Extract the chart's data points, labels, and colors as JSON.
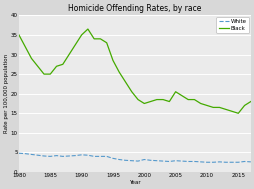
{
  "title": "Homicide Offending Rates, by race",
  "xlabel": "Year",
  "ylabel": "Rate per 100,000 population",
  "ylim": [
    0,
    40
  ],
  "yticks": [
    0,
    5,
    10,
    15,
    20,
    25,
    30,
    35,
    40
  ],
  "xlim": [
    1980,
    2017
  ],
  "xticks": [
    1980,
    1985,
    1990,
    1995,
    2000,
    2005,
    2010,
    2015
  ],
  "white_color": "#5599cc",
  "black_color": "#44aa00",
  "fig_bg_color": "#d8d8d8",
  "plot_bg_color": "#ebebeb",
  "grid_color": "#ffffff",
  "years_white": [
    1980,
    1981,
    1982,
    1983,
    1984,
    1985,
    1986,
    1987,
    1988,
    1989,
    1990,
    1991,
    1992,
    1993,
    1994,
    1995,
    1996,
    1997,
    1998,
    1999,
    2000,
    2001,
    2002,
    2003,
    2004,
    2005,
    2006,
    2007,
    2008,
    2009,
    2010,
    2011,
    2012,
    2013,
    2014,
    2015,
    2016,
    2017
  ],
  "values_white": [
    4.8,
    4.7,
    4.5,
    4.3,
    4.1,
    4.0,
    4.2,
    4.0,
    4.1,
    4.2,
    4.4,
    4.3,
    4.0,
    4.0,
    4.0,
    3.5,
    3.2,
    3.0,
    2.9,
    2.8,
    3.2,
    3.0,
    2.9,
    2.8,
    2.7,
    2.9,
    2.8,
    2.7,
    2.7,
    2.6,
    2.5,
    2.5,
    2.6,
    2.5,
    2.5,
    2.5,
    2.7,
    2.6
  ],
  "years_black": [
    1980,
    1981,
    1982,
    1983,
    1984,
    1985,
    1986,
    1987,
    1988,
    1989,
    1990,
    1991,
    1992,
    1993,
    1994,
    1995,
    1996,
    1997,
    1998,
    1999,
    2000,
    2001,
    2002,
    2003,
    2004,
    2005,
    2006,
    2007,
    2008,
    2009,
    2010,
    2011,
    2012,
    2013,
    2014,
    2015,
    2016,
    2017
  ],
  "values_black": [
    35.0,
    32.0,
    29.0,
    27.0,
    25.0,
    25.0,
    27.0,
    27.5,
    30.0,
    32.5,
    35.0,
    36.5,
    34.0,
    34.0,
    33.0,
    28.5,
    25.5,
    23.0,
    20.5,
    18.5,
    17.5,
    18.0,
    18.5,
    18.5,
    18.0,
    20.5,
    19.5,
    18.5,
    18.5,
    17.5,
    17.0,
    16.5,
    16.5,
    16.0,
    15.5,
    15.0,
    17.0,
    18.0
  ],
  "title_fontsize": 5.5,
  "axis_label_fontsize": 4.0,
  "tick_fontsize": 4.0,
  "legend_fontsize": 4.0
}
